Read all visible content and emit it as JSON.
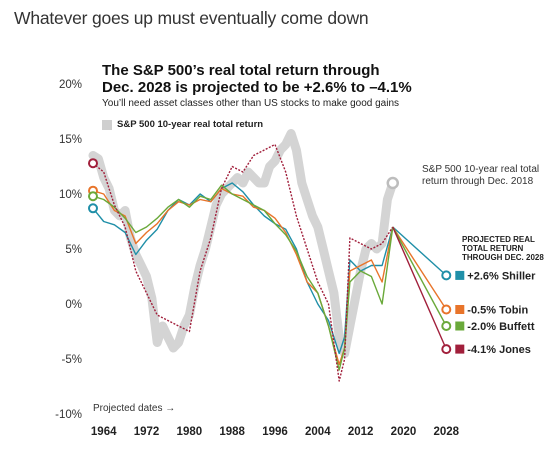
{
  "page": {
    "heading": "Whatever goes up must eventually come down"
  },
  "chart_data": {
    "type": "line",
    "title_line1": "The S&P 500’s real total return through",
    "title_line2": "Dec. 2028 is projected to be +2.6% to –4.1%",
    "subtitle": "You’ll need asset classes other than US stocks to make good gains",
    "legend": "S&P 500 10-year real total return",
    "annotation_current": [
      "S&P 500 10-year real total",
      "return through Dec. 2018"
    ],
    "projected_label": [
      "PROJECTED REAL",
      "TOTAL RETURN",
      "THROUGH DEC. 2028"
    ],
    "projected_dates_label": "Projected dates →",
    "y_ticks": [
      "20%",
      "15%",
      "10%",
      "5%",
      "0%",
      "-5%",
      "-10%"
    ],
    "y_tick_values": [
      20,
      15,
      10,
      5,
      0,
      -5,
      -10
    ],
    "x_ticks": [
      "1964",
      "1972",
      "1980",
      "1988",
      "1996",
      "2004",
      "2012",
      "2020",
      "2028"
    ],
    "x_tick_values": [
      1964,
      1972,
      1980,
      1988,
      1996,
      2004,
      2012,
      2020,
      2028
    ],
    "xlim": [
      1962,
      2030
    ],
    "ylim": [
      -10,
      20
    ],
    "grid": false,
    "actual": {
      "name": "S&P 500 10-year real total return",
      "color": "#cfcfcf",
      "points": [
        [
          1962,
          13.5
        ],
        [
          1963,
          13.2
        ],
        [
          1964,
          11.5
        ],
        [
          1965,
          10.5
        ],
        [
          1966,
          8.5
        ],
        [
          1967,
          8.0
        ],
        [
          1968,
          8.5
        ],
        [
          1969,
          6.0
        ],
        [
          1970,
          4.5
        ],
        [
          1971,
          3.5
        ],
        [
          1972,
          2.5
        ],
        [
          1973,
          0.5
        ],
        [
          1974,
          -3.5
        ],
        [
          1975,
          -2.0
        ],
        [
          1976,
          -3.0
        ],
        [
          1977,
          -4.0
        ],
        [
          1978,
          -3.5
        ],
        [
          1979,
          -2.0
        ],
        [
          1980,
          -1.0
        ],
        [
          1981,
          1.5
        ],
        [
          1982,
          3.5
        ],
        [
          1983,
          5.0
        ],
        [
          1984,
          7.0
        ],
        [
          1985,
          9.0
        ],
        [
          1986,
          10.0
        ],
        [
          1987,
          10.5
        ],
        [
          1988,
          11.0
        ],
        [
          1989,
          11.5
        ],
        [
          1990,
          11.0
        ],
        [
          1991,
          12.0
        ],
        [
          1992,
          11.5
        ],
        [
          1993,
          11.0
        ],
        [
          1994,
          11.0
        ],
        [
          1995,
          12.5
        ],
        [
          1996,
          13.0
        ],
        [
          1997,
          14.0
        ],
        [
          1998,
          14.5
        ],
        [
          1999,
          15.5
        ],
        [
          2000,
          14.0
        ],
        [
          2001,
          11.0
        ],
        [
          2002,
          9.5
        ],
        [
          2003,
          8.0
        ],
        [
          2004,
          7.0
        ],
        [
          2005,
          5.0
        ],
        [
          2006,
          3.0
        ],
        [
          2007,
          1.0
        ],
        [
          2008,
          -3.0
        ],
        [
          2009,
          -4.5
        ],
        [
          2010,
          -2.0
        ],
        [
          2011,
          0.5
        ],
        [
          2012,
          3.0
        ],
        [
          2013,
          5.0
        ],
        [
          2014,
          5.5
        ],
        [
          2015,
          5.0
        ],
        [
          2016,
          5.5
        ],
        [
          2017,
          9.5
        ],
        [
          2018,
          11.0
        ]
      ]
    },
    "projections": [
      {
        "name": "Shiller",
        "value": 2.6,
        "label": "+2.6% Shiller",
        "color": "#1f8fa8",
        "points": [
          [
            1962,
            8.7
          ],
          [
            1964,
            7.5
          ],
          [
            1966,
            7.2
          ],
          [
            1968,
            6.5
          ],
          [
            1970,
            4.5
          ],
          [
            1972,
            5.8
          ],
          [
            1974,
            6.8
          ],
          [
            1976,
            8.5
          ],
          [
            1978,
            9.5
          ],
          [
            1980,
            9.0
          ],
          [
            1982,
            10.0
          ],
          [
            1984,
            9.3
          ],
          [
            1986,
            10.5
          ],
          [
            1988,
            11.0
          ],
          [
            1990,
            10.2
          ],
          [
            1992,
            9.0
          ],
          [
            1994,
            8.0
          ],
          [
            1996,
            7.3
          ],
          [
            1998,
            6.8
          ],
          [
            2000,
            5.0
          ],
          [
            2002,
            2.0
          ],
          [
            2004,
            0.0
          ],
          [
            2006,
            -1.5
          ],
          [
            2008,
            -4.5
          ],
          [
            2009,
            -3.0
          ],
          [
            2010,
            4.0
          ],
          [
            2012,
            3.0
          ],
          [
            2014,
            3.5
          ],
          [
            2016,
            3.5
          ],
          [
            2018,
            7.0
          ],
          [
            2028,
            2.6
          ]
        ]
      },
      {
        "name": "Tobin",
        "value": -0.5,
        "label": "-0.5% Tobin",
        "color": "#e8742a",
        "points": [
          [
            1962,
            10.3
          ],
          [
            1964,
            10.0
          ],
          [
            1966,
            8.5
          ],
          [
            1968,
            8.0
          ],
          [
            1970,
            5.5
          ],
          [
            1972,
            6.5
          ],
          [
            1974,
            7.3
          ],
          [
            1976,
            8.5
          ],
          [
            1978,
            9.3
          ],
          [
            1980,
            9.0
          ],
          [
            1982,
            9.5
          ],
          [
            1984,
            9.3
          ],
          [
            1986,
            10.5
          ],
          [
            1988,
            10.0
          ],
          [
            1990,
            9.8
          ],
          [
            1992,
            8.8
          ],
          [
            1994,
            8.5
          ],
          [
            1996,
            7.8
          ],
          [
            1998,
            6.5
          ],
          [
            2000,
            4.5
          ],
          [
            2002,
            2.0
          ],
          [
            2004,
            1.0
          ],
          [
            2006,
            -2.0
          ],
          [
            2008,
            -5.5
          ],
          [
            2009,
            -4.0
          ],
          [
            2010,
            3.0
          ],
          [
            2012,
            3.5
          ],
          [
            2014,
            4.0
          ],
          [
            2016,
            2.0
          ],
          [
            2018,
            7.0
          ],
          [
            2028,
            -0.5
          ]
        ]
      },
      {
        "name": "Buffett",
        "value": -2.0,
        "label": "-2.0% Buffett",
        "color": "#6aa93a",
        "points": [
          [
            1962,
            9.8
          ],
          [
            1964,
            9.5
          ],
          [
            1966,
            8.8
          ],
          [
            1968,
            7.8
          ],
          [
            1970,
            6.5
          ],
          [
            1972,
            7.0
          ],
          [
            1974,
            7.8
          ],
          [
            1976,
            8.8
          ],
          [
            1978,
            9.5
          ],
          [
            1980,
            8.8
          ],
          [
            1982,
            9.8
          ],
          [
            1984,
            9.5
          ],
          [
            1986,
            10.8
          ],
          [
            1988,
            10.0
          ],
          [
            1990,
            9.5
          ],
          [
            1992,
            9.0
          ],
          [
            1994,
            8.5
          ],
          [
            1996,
            7.3
          ],
          [
            1998,
            6.3
          ],
          [
            2000,
            4.8
          ],
          [
            2002,
            2.5
          ],
          [
            2004,
            1.0
          ],
          [
            2006,
            -2.0
          ],
          [
            2008,
            -6.0
          ],
          [
            2009,
            -4.0
          ],
          [
            2010,
            2.0
          ],
          [
            2012,
            3.0
          ],
          [
            2014,
            2.5
          ],
          [
            2016,
            0.0
          ],
          [
            2018,
            7.0
          ],
          [
            2028,
            -2.0
          ]
        ]
      },
      {
        "name": "Jones",
        "value": -4.1,
        "label": "-4.1% Jones",
        "color": "#a11f3b",
        "points": [
          [
            1962,
            12.8
          ],
          [
            1964,
            12.0
          ],
          [
            1966,
            9.0
          ],
          [
            1968,
            7.0
          ],
          [
            1970,
            3.0
          ],
          [
            1972,
            1.0
          ],
          [
            1974,
            -1.0
          ],
          [
            1976,
            -1.5
          ],
          [
            1978,
            -2.0
          ],
          [
            1980,
            -2.5
          ],
          [
            1982,
            3.0
          ],
          [
            1984,
            6.0
          ],
          [
            1986,
            10.5
          ],
          [
            1988,
            12.5
          ],
          [
            1990,
            12.0
          ],
          [
            1992,
            13.5
          ],
          [
            1994,
            14.0
          ],
          [
            1996,
            14.5
          ],
          [
            1998,
            12.0
          ],
          [
            2000,
            8.0
          ],
          [
            2002,
            5.0
          ],
          [
            2004,
            2.0
          ],
          [
            2006,
            0.0
          ],
          [
            2008,
            -7.0
          ],
          [
            2009,
            -5.0
          ],
          [
            2010,
            6.0
          ],
          [
            2012,
            5.5
          ],
          [
            2014,
            5.0
          ],
          [
            2016,
            5.5
          ],
          [
            2018,
            7.0
          ],
          [
            2028,
            -4.1
          ]
        ]
      }
    ]
  }
}
